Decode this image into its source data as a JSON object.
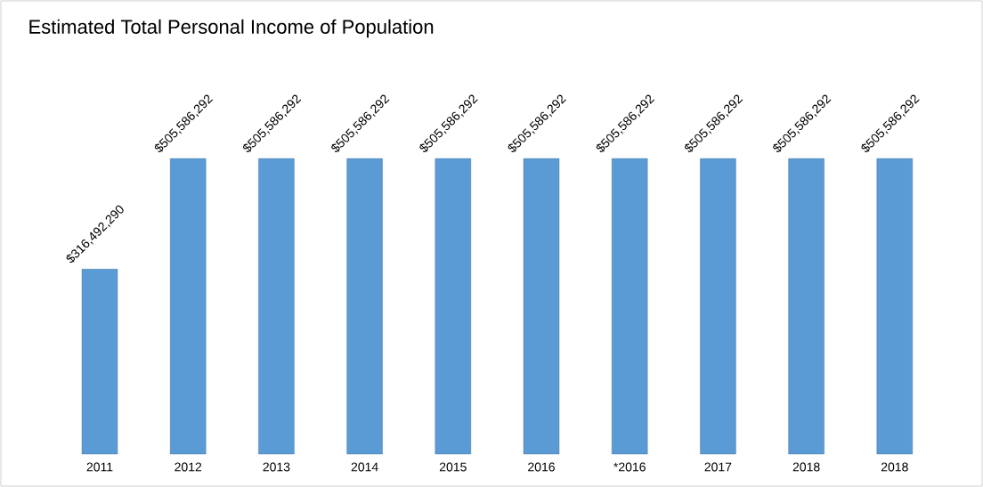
{
  "chart_data": {
    "type": "bar",
    "title": "Estimated Total Personal Income of Population",
    "categories": [
      "2011",
      "2012",
      "2013",
      "2014",
      "2015",
      "2016",
      "*2016",
      "2017",
      "2018",
      "2018"
    ],
    "values": [
      316492290,
      505586292,
      505586292,
      505586292,
      505586292,
      505586292,
      505586292,
      505586292,
      505586292,
      505586292
    ],
    "value_labels": [
      "$316,492,290",
      "$505,586,292",
      "$505,586,292",
      "$505,586,292",
      "$505,586,292",
      "$505,586,292",
      "$505,586,292",
      "$505,586,292",
      "$505,586,292",
      "$505,586,292"
    ],
    "color": "#5b9bd5"
  }
}
